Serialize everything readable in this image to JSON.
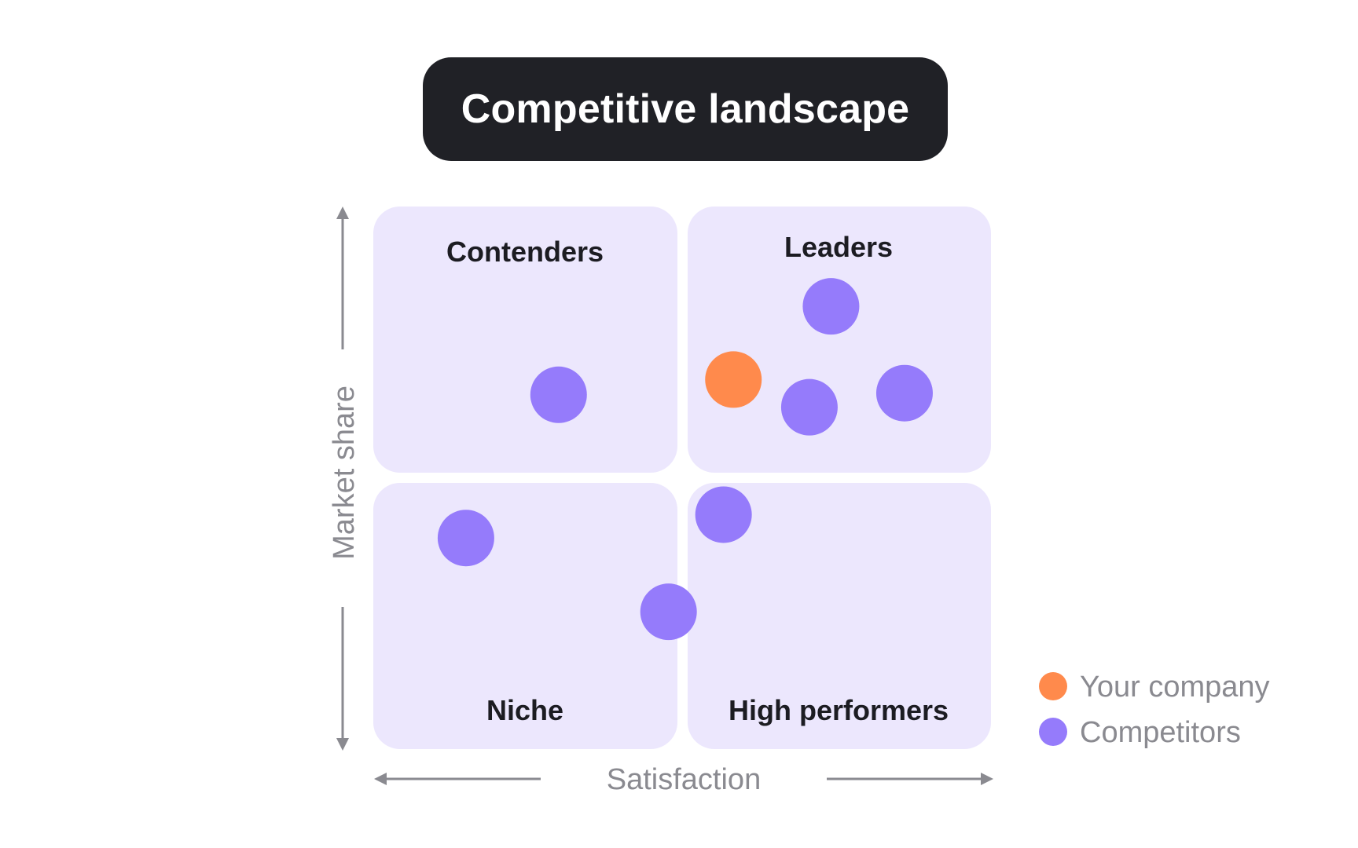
{
  "title": "Competitive landscape",
  "chart_data": {
    "type": "scatter",
    "title": "Competitive landscape",
    "xlabel": "Satisfaction",
    "ylabel": "Market share",
    "xlim": [
      0,
      100
    ],
    "ylim": [
      0,
      100
    ],
    "grid": false,
    "quadrants": {
      "top_left": "Contenders",
      "top_right": "Leaders",
      "bottom_left": "Niche",
      "bottom_right": "High performers"
    },
    "colors": {
      "your_company": "#ff8a4c",
      "competitors": "#957bfb",
      "quadrant_bg": "#ece7fd"
    },
    "legend": {
      "placement": "bottom-right",
      "entries": [
        "Your company",
        "Competitors"
      ]
    },
    "series": [
      {
        "name": "Your company",
        "points": [
          {
            "x": 58.3,
            "y": 68.1
          }
        ]
      },
      {
        "name": "Competitors",
        "points": [
          {
            "x": 74.1,
            "y": 81.6
          },
          {
            "x": 70.6,
            "y": 63.0
          },
          {
            "x": 86.0,
            "y": 65.6
          },
          {
            "x": 30.0,
            "y": 65.3
          },
          {
            "x": 15.0,
            "y": 38.9
          },
          {
            "x": 56.7,
            "y": 43.2
          },
          {
            "x": 47.8,
            "y": 25.3
          }
        ]
      }
    ]
  }
}
